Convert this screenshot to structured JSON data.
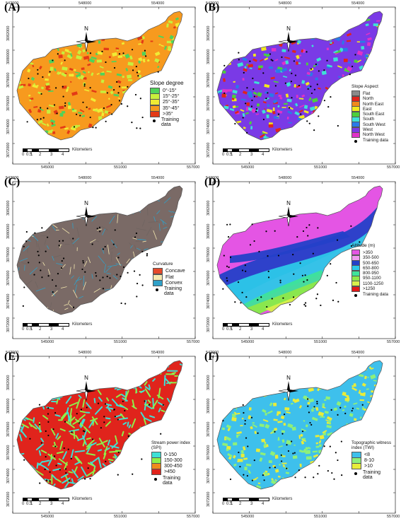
{
  "panels": [
    {
      "id": "A",
      "label": "(A)",
      "legend": {
        "title": "Slope degree",
        "items": [
          {
            "label": "0°-15°",
            "color": "#4fd35a"
          },
          {
            "label": "15°-25°",
            "color": "#c8f03c"
          },
          {
            "label": "25°-35°",
            "color": "#f0ec34"
          },
          {
            "label": "35°-45°",
            "color": "#f79a1e"
          },
          {
            "label": ">35°",
            "color": "#e33a16"
          }
        ],
        "training": "Training data"
      },
      "fill_colors": [
        "#f79a1e",
        "#c8f03c",
        "#4fd35a",
        "#f0ec34",
        "#e33a16"
      ]
    },
    {
      "id": "B",
      "label": "(B)",
      "legend": {
        "title": "Slope Aspect",
        "items": [
          {
            "label": "Flat",
            "color": "#8a8a8a"
          },
          {
            "label": "North",
            "color": "#e0241c"
          },
          {
            "label": "North East",
            "color": "#f08a1c"
          },
          {
            "label": "East",
            "color": "#f2e81e"
          },
          {
            "label": "South East",
            "color": "#4ccf3c"
          },
          {
            "label": "South",
            "color": "#3ee0d6"
          },
          {
            "label": "South West",
            "color": "#2a7ae8"
          },
          {
            "label": "West",
            "color": "#7a3ae6"
          },
          {
            "label": "North West",
            "color": "#e032c8"
          }
        ],
        "training": "Training data"
      },
      "fill_colors": [
        "#7a3ae6",
        "#e032c8",
        "#2a7ae8",
        "#3ee0d6",
        "#e0241c",
        "#f2e81e",
        "#4ccf3c"
      ]
    },
    {
      "id": "C",
      "label": "(C)",
      "legend": {
        "title": "Curvature",
        "items": [
          {
            "label": "Concave",
            "color": "#e64a2a"
          },
          {
            "label": "Flat",
            "color": "#f5e9b0"
          },
          {
            "label": "Convex",
            "color": "#2fa0c8"
          }
        ],
        "training": "Training data"
      },
      "fill_colors": [
        "#7a6a66",
        "#6f6460",
        "#2fa0c8",
        "#f5e9b0"
      ]
    },
    {
      "id": "D",
      "label": "(D)",
      "legend": {
        "title": "Altitude (m)",
        "items": [
          {
            "label": ">350",
            "color": "#e455e4"
          },
          {
            "label": "350-500",
            "color": "#ee9af0"
          },
          {
            "label": "500-650",
            "color": "#2440c8"
          },
          {
            "label": "650-800",
            "color": "#2cc8e8"
          },
          {
            "label": "800-950",
            "color": "#3ee39a"
          },
          {
            "label": "950-1100",
            "color": "#8ee84a"
          },
          {
            "label": "1100-1250",
            "color": "#d8f04a"
          },
          {
            "label": ">1250",
            "color": "#e01818"
          }
        ],
        "training": "Training data"
      },
      "fill_colors": [
        "#e455e4",
        "#2440c8",
        "#2cc8e8",
        "#3ee39a",
        "#8ee84a",
        "#d8f04a"
      ]
    },
    {
      "id": "E",
      "label": "(E)",
      "legend": {
        "title": "Stream power index (SPI)",
        "items": [
          {
            "label": "0-150",
            "color": "#3ee0d6"
          },
          {
            "label": "150-300",
            "color": "#8ef04a"
          },
          {
            "label": "300-450",
            "color": "#f08a1c"
          },
          {
            "label": ">450",
            "color": "#e0241c"
          }
        ],
        "training": "Training data"
      },
      "fill_colors": [
        "#e0241c",
        "#8ef04a",
        "#3ee0d6"
      ]
    },
    {
      "id": "F",
      "label": "(F)",
      "legend": {
        "title": "Topographic witness index (TWI)",
        "items": [
          {
            "label": "<8",
            "color": "#3ec0ec"
          },
          {
            "label": "8-10",
            "color": "#8ef07a"
          },
          {
            "label": ">10",
            "color": "#e8ec3a"
          }
        ],
        "training": "Training data"
      },
      "fill_colors": [
        "#3ec0ec",
        "#8ef07a",
        "#e8ec3a"
      ]
    }
  ],
  "axes": {
    "x_ticks_top": [
      "542000",
      "548000",
      "554000"
    ],
    "x_ticks_bottom": [
      "545000",
      "551000",
      "557000"
    ],
    "y_ticks": [
      "3082000",
      "3080000",
      "3078000",
      "3076000",
      "3074000",
      "3072000"
    ]
  },
  "scale_bar": {
    "labels": [
      "0",
      "0.5",
      "1",
      "2",
      "3",
      "4"
    ],
    "unit": "Kilometers"
  },
  "north_label": "N"
}
